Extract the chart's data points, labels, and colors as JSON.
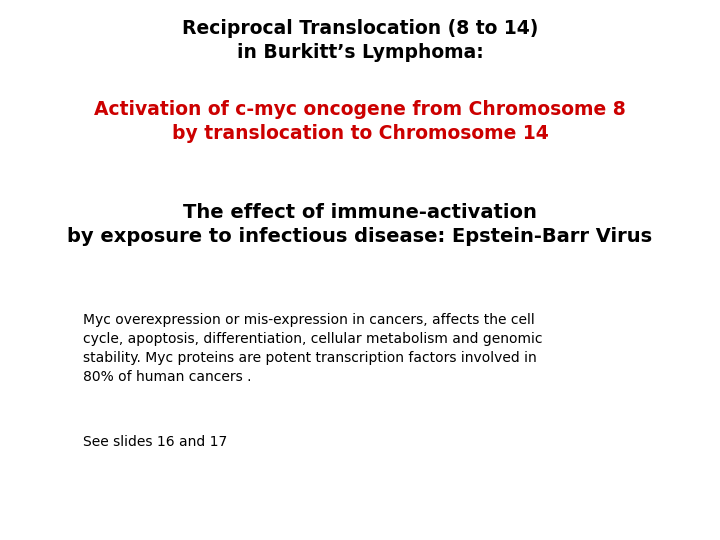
{
  "background_color": "#ffffff",
  "title_line1": "Reciprocal Translocation (8 to 14)",
  "title_line2": "in Burkitt’s Lymphoma:",
  "title_line3": "Activation of c-myc oncogene from Chromosome 8",
  "title_line4": "by translocation to Chromosome 14",
  "subtitle_line1": "The effect of immune-activation",
  "subtitle_line2": "by exposure to infectious disease: Epstein-Barr Virus",
  "body_text": "Myc overexpression or mis-expression in cancers, affects the cell\ncycle, apoptosis, differentiation, cellular metabolism and genomic\nstability. Myc proteins are potent transcription factors involved in\n80% of human cancers .",
  "footer_text": "See slides 16 and 17",
  "title_color": "#000000",
  "red_color": "#cc0000",
  "subtitle_color": "#000000",
  "body_color": "#000000",
  "title_fontsize": 13.5,
  "subtitle_fontsize": 14,
  "body_fontsize": 10,
  "footer_fontsize": 10
}
